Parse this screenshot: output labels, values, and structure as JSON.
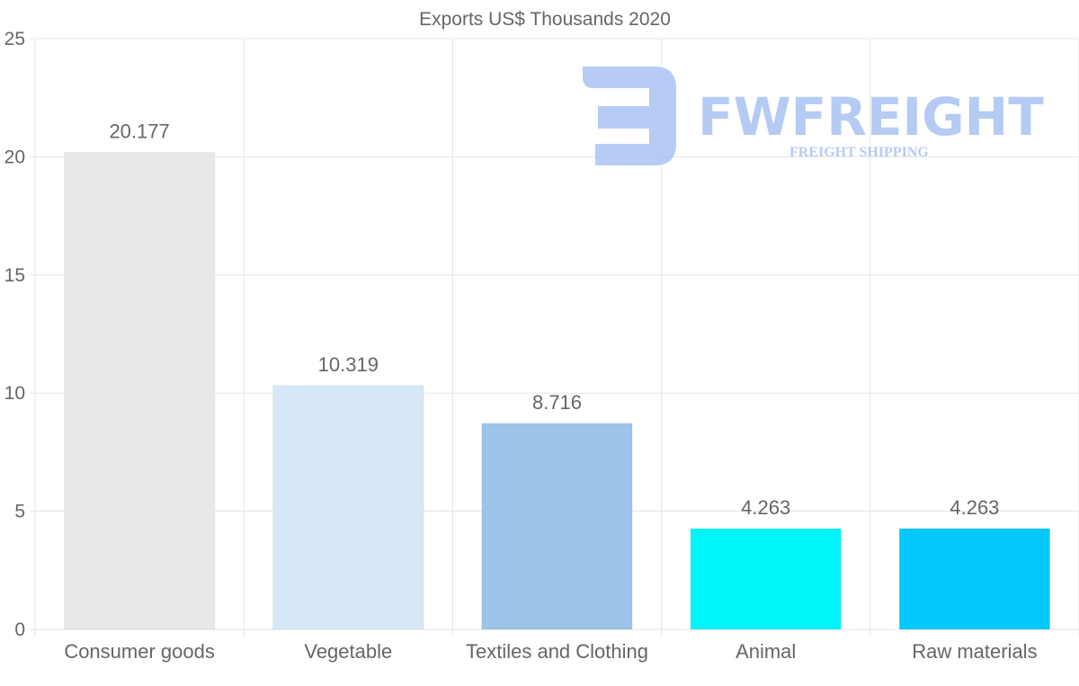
{
  "chart_data": {
    "type": "bar",
    "title": "Exports US$ Thousands 2020",
    "categories": [
      "Consumer goods",
      "Vegetable",
      "Textiles and Clothing",
      "Animal",
      "Raw materials"
    ],
    "values": [
      20.177,
      10.319,
      8.716,
      4.263,
      4.263
    ],
    "value_labels": [
      "20.177",
      "10.319",
      "8.716",
      "4.263",
      "4.263"
    ],
    "colors": [
      "#e8e8e8",
      "#d6e8f8",
      "#9cc4e8",
      "#00f5f8",
      "#03c8fc"
    ],
    "ylim": [
      0,
      25
    ],
    "yticks": [
      0,
      5,
      10,
      15,
      20,
      25
    ],
    "xlabel": "",
    "ylabel": "",
    "grid": true,
    "legend": "none"
  },
  "watermark": {
    "brand": "FWFREIGHT",
    "tagline": "FREIGHT SHIPPING",
    "color": "#a9c3f3"
  }
}
